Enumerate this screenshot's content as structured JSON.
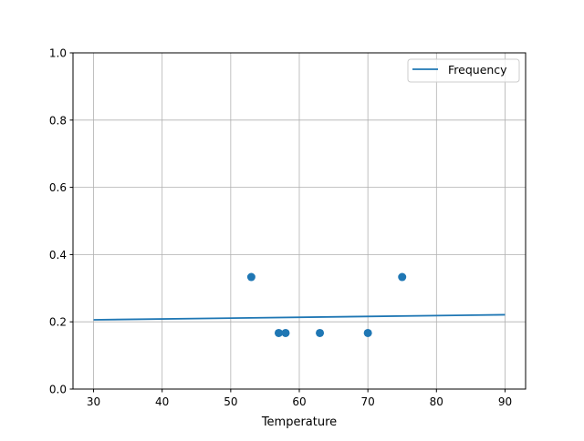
{
  "chart_data": {
    "type": "scatter",
    "title": "",
    "xlabel": "Temperature",
    "ylabel": "",
    "xlim": [
      27,
      93
    ],
    "ylim": [
      0,
      1.0
    ],
    "grid": true,
    "legend_position": "top-right",
    "xticks": [
      "30",
      "40",
      "50",
      "60",
      "70",
      "80",
      "90"
    ],
    "yticks": [
      "0.0",
      "0.2",
      "0.4",
      "0.6",
      "0.8",
      "1.0"
    ],
    "color": "#1f77b4",
    "series": [
      {
        "type": "scatter",
        "x": [
          53,
          57,
          58,
          63,
          70,
          75
        ],
        "y": [
          0.3333,
          0.1667,
          0.1667,
          0.1667,
          0.1667,
          0.3333
        ]
      },
      {
        "type": "line",
        "name": "Frequency",
        "x": [
          30,
          90
        ],
        "y": [
          0.206,
          0.221
        ]
      }
    ]
  }
}
